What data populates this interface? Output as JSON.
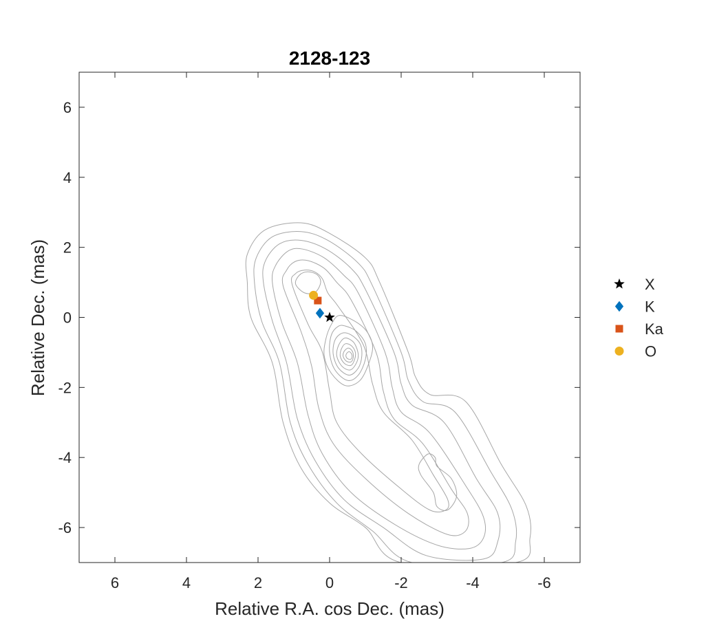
{
  "chart_data": {
    "type": "scatter",
    "title": "2128-123",
    "xlabel": "Relative R.A. cos Dec. (mas)",
    "ylabel": "Relative Dec. (mas)",
    "xlim": [
      7,
      -7
    ],
    "ylim": [
      -7,
      7
    ],
    "x_reversed": true,
    "xticks": [
      6,
      4,
      2,
      0,
      -2,
      -4,
      -6
    ],
    "xtick_labels": [
      "6",
      "4",
      "2",
      "0",
      "-2",
      "-4",
      "-6"
    ],
    "yticks": [
      6,
      4,
      2,
      0,
      -2,
      -4,
      -6
    ],
    "ytick_labels": [
      "6",
      "4",
      "2",
      "0",
      "-2",
      "-4",
      "-6"
    ],
    "legend_position": "right",
    "series": [
      {
        "name": "X",
        "marker": "star",
        "color": "#000000",
        "x": [
          0.0
        ],
        "y": [
          0.0
        ]
      },
      {
        "name": "K",
        "marker": "diamond",
        "color": "#0072BD",
        "x": [
          0.27
        ],
        "y": [
          0.12
        ]
      },
      {
        "name": "Ka",
        "marker": "square",
        "color": "#D95319",
        "x": [
          0.33
        ],
        "y": [
          0.48
        ]
      },
      {
        "name": "O",
        "marker": "circle",
        "color": "#EDB120",
        "x": [
          0.45
        ],
        "y": [
          0.63
        ]
      }
    ],
    "contour_color": "#a6a6a6",
    "contours": [
      {
        "level": 1,
        "points": [
          [
            2.3,
            1.0
          ],
          [
            2.3,
            1.8
          ],
          [
            1.8,
            2.5
          ],
          [
            0.8,
            2.7
          ],
          [
            0.0,
            2.4
          ],
          [
            -1.0,
            1.7
          ],
          [
            -1.4,
            1.0
          ],
          [
            -2.2,
            -1.0
          ],
          [
            -2.4,
            -1.7
          ],
          [
            -2.8,
            -2.2
          ],
          [
            -3.8,
            -2.4
          ],
          [
            -4.8,
            -4.2
          ],
          [
            -5.5,
            -5.4
          ],
          [
            -5.6,
            -6.3
          ],
          [
            -5.2,
            -7.0
          ],
          [
            -2.0,
            -7.0
          ],
          [
            -1.0,
            -6.0
          ],
          [
            0.0,
            -5.3
          ],
          [
            0.8,
            -4.3
          ],
          [
            1.3,
            -3.0
          ],
          [
            1.6,
            -1.3
          ],
          [
            2.2,
            0.0
          ]
        ]
      },
      {
        "level": 2,
        "points": [
          [
            2.1,
            1.0
          ],
          [
            2.05,
            1.7
          ],
          [
            1.6,
            2.3
          ],
          [
            0.8,
            2.45
          ],
          [
            0.05,
            2.2
          ],
          [
            -0.8,
            1.55
          ],
          [
            -1.2,
            0.9
          ],
          [
            -2.0,
            -1.0
          ],
          [
            -2.2,
            -1.8
          ],
          [
            -2.6,
            -2.4
          ],
          [
            -3.5,
            -2.7
          ],
          [
            -4.5,
            -4.4
          ],
          [
            -5.1,
            -5.5
          ],
          [
            -5.2,
            -6.4
          ],
          [
            -4.8,
            -7.0
          ],
          [
            -2.3,
            -7.0
          ],
          [
            -1.2,
            -6.1
          ],
          [
            -0.2,
            -5.3
          ],
          [
            0.6,
            -4.2
          ],
          [
            1.1,
            -3.0
          ],
          [
            1.4,
            -1.3
          ],
          [
            1.9,
            -0.1
          ]
        ]
      },
      {
        "level": 3,
        "points": [
          [
            1.85,
            1.0
          ],
          [
            1.8,
            1.6
          ],
          [
            1.4,
            2.1
          ],
          [
            0.8,
            2.2
          ],
          [
            0.1,
            1.95
          ],
          [
            -0.6,
            1.4
          ],
          [
            -1.0,
            0.8
          ],
          [
            -1.8,
            -1.0
          ],
          [
            -2.0,
            -1.9
          ],
          [
            -2.3,
            -2.5
          ],
          [
            -3.2,
            -3.0
          ],
          [
            -4.1,
            -4.6
          ],
          [
            -4.7,
            -5.6
          ],
          [
            -4.7,
            -6.4
          ],
          [
            -4.3,
            -6.9
          ],
          [
            -2.7,
            -6.8
          ],
          [
            -1.5,
            -6.0
          ],
          [
            -0.4,
            -5.2
          ],
          [
            0.4,
            -4.1
          ],
          [
            0.9,
            -2.9
          ],
          [
            1.2,
            -1.3
          ],
          [
            1.6,
            -0.1
          ]
        ]
      },
      {
        "level": 4,
        "points": [
          [
            1.6,
            1.0
          ],
          [
            1.5,
            1.5
          ],
          [
            1.15,
            1.9
          ],
          [
            0.75,
            1.95
          ],
          [
            0.15,
            1.7
          ],
          [
            -0.4,
            1.2
          ],
          [
            -0.8,
            0.7
          ],
          [
            -1.55,
            -1.0
          ],
          [
            -1.75,
            -2.0
          ],
          [
            -2.0,
            -2.7
          ],
          [
            -2.8,
            -3.3
          ],
          [
            -3.8,
            -4.8
          ],
          [
            -4.3,
            -5.7
          ],
          [
            -4.3,
            -6.3
          ],
          [
            -3.9,
            -6.6
          ],
          [
            -3.0,
            -6.5
          ],
          [
            -1.8,
            -5.9
          ],
          [
            -0.6,
            -5.0
          ],
          [
            0.2,
            -3.9
          ],
          [
            0.6,
            -2.8
          ],
          [
            0.9,
            -1.3
          ],
          [
            1.35,
            -0.1
          ]
        ]
      },
      {
        "level": 5,
        "points": [
          [
            1.3,
            0.9
          ],
          [
            1.2,
            1.35
          ],
          [
            0.95,
            1.6
          ],
          [
            0.6,
            1.62
          ],
          [
            0.15,
            1.4
          ],
          [
            -0.2,
            1.0
          ],
          [
            -0.6,
            0.5
          ],
          [
            -1.3,
            -1.0
          ],
          [
            -1.5,
            -2.1
          ],
          [
            -1.8,
            -2.9
          ],
          [
            -2.6,
            -3.6
          ],
          [
            -3.4,
            -4.9
          ],
          [
            -3.85,
            -5.6
          ],
          [
            -3.8,
            -6.1
          ],
          [
            -3.3,
            -6.2
          ],
          [
            -2.2,
            -5.6
          ],
          [
            -1.0,
            -4.6
          ],
          [
            -0.1,
            -3.6
          ],
          [
            0.3,
            -2.6
          ],
          [
            0.5,
            -1.4
          ],
          [
            0.8,
            -0.4
          ]
        ]
      },
      {
        "level": 6,
        "points": [
          [
            1.05,
            0.95
          ],
          [
            0.95,
            1.25
          ],
          [
            0.7,
            1.35
          ],
          [
            0.42,
            1.3
          ],
          [
            0.2,
            1.1
          ],
          [
            0.05,
            0.7
          ],
          [
            -0.25,
            0.3
          ],
          [
            -0.95,
            -0.8
          ],
          [
            -1.2,
            -1.9
          ],
          [
            -1.5,
            -2.7
          ],
          [
            -2.3,
            -3.5
          ],
          [
            -2.9,
            -4.5
          ],
          [
            -3.3,
            -5.2
          ],
          [
            -3.25,
            -5.5
          ],
          [
            -2.8,
            -5.5
          ],
          [
            -2.0,
            -4.9
          ],
          [
            -0.9,
            -3.9
          ],
          [
            -0.2,
            -3.0
          ],
          [
            0.0,
            -2.1
          ],
          [
            0.2,
            -1.0
          ],
          [
            0.6,
            -0.2
          ]
        ]
      },
      {
        "level": 7,
        "points": [
          [
            0.95,
            0.95
          ],
          [
            0.85,
            1.2
          ],
          [
            0.62,
            1.3
          ],
          [
            0.35,
            1.22
          ],
          [
            0.25,
            1.0
          ],
          [
            0.4,
            0.72
          ],
          [
            0.7,
            0.7
          ]
        ]
      },
      {
        "level": 8,
        "points": [
          [
            -0.25,
            0.05
          ],
          [
            -0.05,
            -0.2
          ],
          [
            0.1,
            -0.6
          ],
          [
            0.15,
            -1.1
          ],
          [
            -0.05,
            -1.6
          ],
          [
            -0.45,
            -1.95
          ],
          [
            -0.85,
            -1.8
          ],
          [
            -1.1,
            -1.3
          ],
          [
            -1.2,
            -0.8
          ],
          [
            -1.0,
            -0.35
          ],
          [
            -0.6,
            -0.05
          ]
        ]
      },
      {
        "level": 9,
        "points": [
          [
            -0.25,
            -0.25
          ],
          [
            -0.05,
            -0.5
          ],
          [
            0.0,
            -1.0
          ],
          [
            -0.15,
            -1.5
          ],
          [
            -0.5,
            -1.8
          ],
          [
            -0.8,
            -1.65
          ],
          [
            -1.0,
            -1.2
          ],
          [
            -1.0,
            -0.75
          ],
          [
            -0.75,
            -0.4
          ],
          [
            -0.45,
            -0.25
          ]
        ]
      },
      {
        "level": 10,
        "points": [
          [
            -0.35,
            -0.45
          ],
          [
            -0.15,
            -0.65
          ],
          [
            -0.1,
            -1.05
          ],
          [
            -0.25,
            -1.45
          ],
          [
            -0.55,
            -1.65
          ],
          [
            -0.8,
            -1.45
          ],
          [
            -0.9,
            -1.1
          ],
          [
            -0.85,
            -0.75
          ],
          [
            -0.6,
            -0.5
          ]
        ]
      },
      {
        "level": 11,
        "points": [
          [
            -0.4,
            -0.6
          ],
          [
            -0.25,
            -0.8
          ],
          [
            -0.2,
            -1.1
          ],
          [
            -0.35,
            -1.4
          ],
          [
            -0.58,
            -1.5
          ],
          [
            -0.75,
            -1.3
          ],
          [
            -0.8,
            -1.05
          ],
          [
            -0.7,
            -0.75
          ],
          [
            -0.55,
            -0.62
          ]
        ]
      },
      {
        "level": 12,
        "points": [
          [
            -0.45,
            -0.75
          ],
          [
            -0.33,
            -0.9
          ],
          [
            -0.3,
            -1.12
          ],
          [
            -0.42,
            -1.32
          ],
          [
            -0.6,
            -1.37
          ],
          [
            -0.7,
            -1.2
          ],
          [
            -0.72,
            -1.0
          ],
          [
            -0.62,
            -0.82
          ]
        ]
      },
      {
        "level": 13,
        "points": [
          [
            -0.5,
            -0.88
          ],
          [
            -0.4,
            -0.98
          ],
          [
            -0.38,
            -1.12
          ],
          [
            -0.47,
            -1.25
          ],
          [
            -0.6,
            -1.27
          ],
          [
            -0.66,
            -1.15
          ],
          [
            -0.65,
            -1.0
          ],
          [
            -0.58,
            -0.9
          ]
        ]
      },
      {
        "level": 14,
        "points": [
          [
            -0.54,
            -0.98
          ],
          [
            -0.47,
            -1.04
          ],
          [
            -0.46,
            -1.12
          ],
          [
            -0.52,
            -1.19
          ],
          [
            -0.6,
            -1.19
          ],
          [
            -0.63,
            -1.1
          ],
          [
            -0.6,
            -1.02
          ]
        ]
      },
      {
        "level": 15,
        "points": [
          [
            -2.5,
            -4.2
          ],
          [
            -2.55,
            -4.5
          ],
          [
            -2.9,
            -5.0
          ],
          [
            -3.0,
            -5.4
          ],
          [
            -3.3,
            -5.5
          ],
          [
            -3.55,
            -5.1
          ],
          [
            -3.4,
            -4.6
          ],
          [
            -3.0,
            -4.25
          ],
          [
            -2.95,
            -4.0
          ],
          [
            -2.75,
            -3.9
          ]
        ]
      }
    ]
  }
}
